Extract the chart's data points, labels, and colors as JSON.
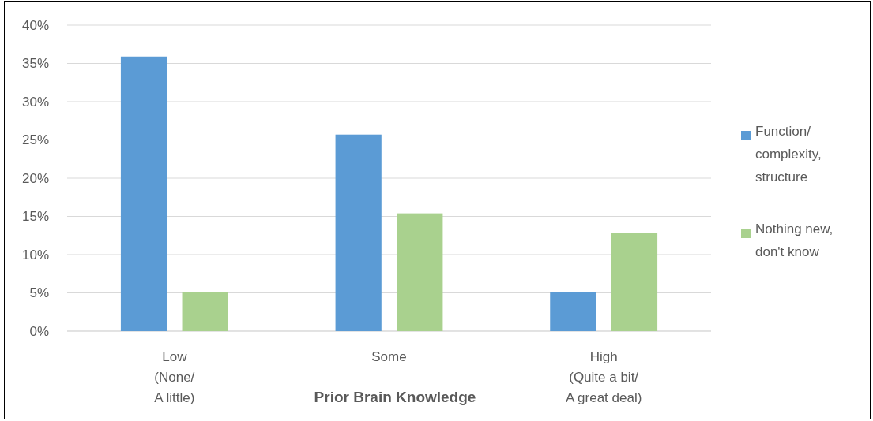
{
  "chart_data": {
    "type": "bar",
    "xlabel": "Prior Brain Knowledge",
    "categories": [
      "Low\n(None/\nA little)",
      "Some",
      "High\n(Quite a bit/\nA great deal)"
    ],
    "series": [
      {
        "name": "Function/ complexity, structure",
        "color": "#5b9bd5",
        "values": [
          35.9,
          25.7,
          5.1
        ]
      },
      {
        "name": "Nothing new, don't know",
        "color": "#a9d18e",
        "values": [
          5.1,
          15.4,
          12.8
        ]
      }
    ],
    "ylim": [
      0,
      40
    ],
    "yticks": [
      {
        "value": 0,
        "label": "0%"
      },
      {
        "value": 5,
        "label": "5%"
      },
      {
        "value": 10,
        "label": "10%"
      },
      {
        "value": 15,
        "label": "15%"
      },
      {
        "value": 20,
        "label": "20%"
      },
      {
        "value": 25,
        "label": "25%"
      },
      {
        "value": 30,
        "label": "30%"
      },
      {
        "value": 35,
        "label": "35%"
      },
      {
        "value": 40,
        "label": "40%"
      }
    ],
    "grid": "y",
    "legend": "right"
  }
}
